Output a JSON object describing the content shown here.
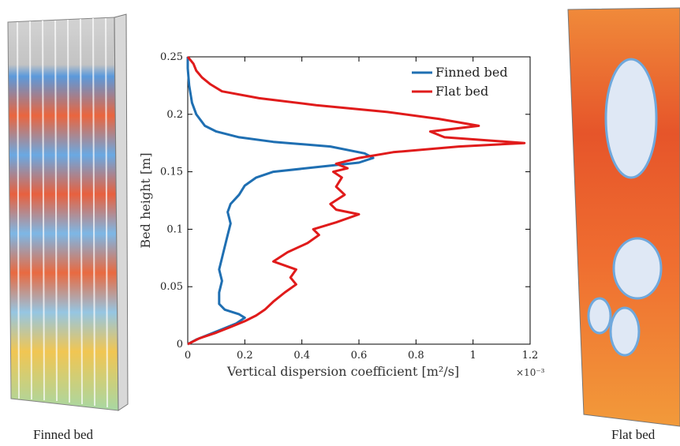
{
  "captions": {
    "left": "Finned bed",
    "right": "Flat bed"
  },
  "colors": {
    "finned": "#1f6fb2",
    "flat": "#e01b1b"
  },
  "chart_data": {
    "type": "line",
    "title": "",
    "xlabel": "Vertical dispersion coefficient [m²/s]",
    "x_multiplier": "×10⁻³",
    "ylabel": "Bed height [m]",
    "xlim": [
      0,
      1.2
    ],
    "ylim": [
      0,
      0.25
    ],
    "xticks": [
      "0",
      "0.2",
      "0.4",
      "0.6",
      "0.8",
      "1",
      "1.2"
    ],
    "yticks": [
      "0",
      "0.05",
      "0.1",
      "0.15",
      "0.2",
      "0.25"
    ],
    "legend": "top-right",
    "series": [
      {
        "name": "Finned bed",
        "color": "#1f6fb2",
        "points": [
          [
            0.0,
            0.0
          ],
          [
            0.03,
            0.004
          ],
          [
            0.07,
            0.008
          ],
          [
            0.12,
            0.013
          ],
          [
            0.17,
            0.018
          ],
          [
            0.2,
            0.023
          ],
          [
            0.18,
            0.026
          ],
          [
            0.13,
            0.03
          ],
          [
            0.11,
            0.035
          ],
          [
            0.11,
            0.045
          ],
          [
            0.12,
            0.055
          ],
          [
            0.11,
            0.065
          ],
          [
            0.12,
            0.075
          ],
          [
            0.13,
            0.085
          ],
          [
            0.14,
            0.095
          ],
          [
            0.15,
            0.105
          ],
          [
            0.14,
            0.115
          ],
          [
            0.15,
            0.122
          ],
          [
            0.18,
            0.13
          ],
          [
            0.2,
            0.138
          ],
          [
            0.24,
            0.145
          ],
          [
            0.3,
            0.15
          ],
          [
            0.45,
            0.154
          ],
          [
            0.6,
            0.158
          ],
          [
            0.65,
            0.162
          ],
          [
            0.62,
            0.166
          ],
          [
            0.5,
            0.172
          ],
          [
            0.3,
            0.176
          ],
          [
            0.18,
            0.18
          ],
          [
            0.1,
            0.185
          ],
          [
            0.06,
            0.19
          ],
          [
            0.03,
            0.2
          ],
          [
            0.015,
            0.21
          ],
          [
            0.005,
            0.225
          ],
          [
            0.0,
            0.24
          ],
          [
            0.0,
            0.25
          ]
        ]
      },
      {
        "name": "Flat bed",
        "color": "#e01b1b",
        "points": [
          [
            0.0,
            0.0
          ],
          [
            0.04,
            0.005
          ],
          [
            0.1,
            0.01
          ],
          [
            0.15,
            0.015
          ],
          [
            0.2,
            0.02
          ],
          [
            0.24,
            0.025
          ],
          [
            0.27,
            0.03
          ],
          [
            0.3,
            0.037
          ],
          [
            0.34,
            0.045
          ],
          [
            0.38,
            0.052
          ],
          [
            0.36,
            0.058
          ],
          [
            0.38,
            0.065
          ],
          [
            0.3,
            0.072
          ],
          [
            0.35,
            0.08
          ],
          [
            0.42,
            0.088
          ],
          [
            0.46,
            0.095
          ],
          [
            0.44,
            0.1
          ],
          [
            0.52,
            0.106
          ],
          [
            0.6,
            0.113
          ],
          [
            0.52,
            0.117
          ],
          [
            0.5,
            0.122
          ],
          [
            0.55,
            0.13
          ],
          [
            0.52,
            0.137
          ],
          [
            0.54,
            0.145
          ],
          [
            0.51,
            0.15
          ],
          [
            0.56,
            0.153
          ],
          [
            0.52,
            0.157
          ],
          [
            0.6,
            0.162
          ],
          [
            0.72,
            0.167
          ],
          [
            0.95,
            0.172
          ],
          [
            1.18,
            0.175
          ],
          [
            0.9,
            0.18
          ],
          [
            0.85,
            0.185
          ],
          [
            1.02,
            0.19
          ],
          [
            0.88,
            0.196
          ],
          [
            0.7,
            0.202
          ],
          [
            0.45,
            0.208
          ],
          [
            0.25,
            0.214
          ],
          [
            0.12,
            0.22
          ],
          [
            0.08,
            0.226
          ],
          [
            0.05,
            0.232
          ],
          [
            0.03,
            0.238
          ],
          [
            0.02,
            0.244
          ],
          [
            0.0,
            0.25
          ]
        ]
      }
    ]
  }
}
